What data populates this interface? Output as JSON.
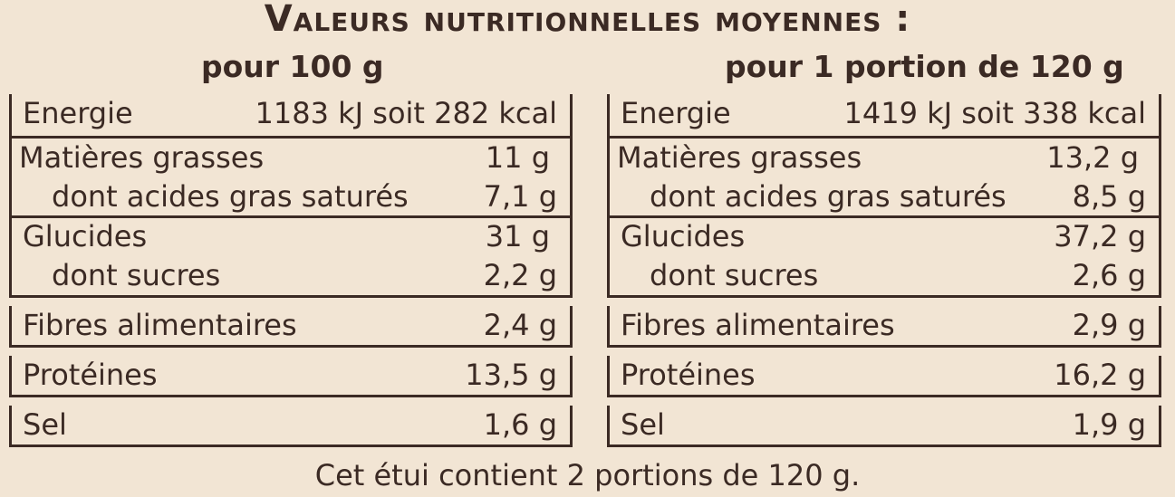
{
  "title": "Valeurs nutritionnelles moyennes :",
  "columns": {
    "per100": {
      "heading": "pour 100 g",
      "energy": {
        "label": "Energie",
        "value": "1183 kJ soit 282 kcal"
      },
      "fat": {
        "label": "Matières grasses",
        "value": "11 g"
      },
      "saturates": {
        "label": "dont acides gras saturés",
        "value": "7,1 g"
      },
      "carbs": {
        "label": "Glucides",
        "value": "31 g"
      },
      "sugars": {
        "label": "dont sucres",
        "value": "2,2 g"
      },
      "fibre": {
        "label": "Fibres alimentaires",
        "value": "2,4 g"
      },
      "protein": {
        "label": "Protéines",
        "value": "13,5 g"
      },
      "salt": {
        "label": "Sel",
        "value": "1,6 g"
      }
    },
    "perPortion": {
      "heading": "pour 1 portion de 120 g",
      "energy": {
        "label": "Energie",
        "value": "1419 kJ soit 338 kcal"
      },
      "fat": {
        "label": "Matières grasses",
        "value": "13,2 g"
      },
      "saturates": {
        "label": "dont acides gras saturés",
        "value": "8,5 g"
      },
      "carbs": {
        "label": "Glucides",
        "value": "37,2 g"
      },
      "sugars": {
        "label": "dont sucres",
        "value": "2,6 g"
      },
      "fibre": {
        "label": "Fibres alimentaires",
        "value": "2,9 g"
      },
      "protein": {
        "label": "Protéines",
        "value": "16,2 g"
      },
      "salt": {
        "label": "Sel",
        "value": "1,9 g"
      }
    }
  },
  "footer": "Cet étui contient 2 portions de 120 g.",
  "colors": {
    "background": "#f2e5d4",
    "text": "#3b2a24"
  }
}
